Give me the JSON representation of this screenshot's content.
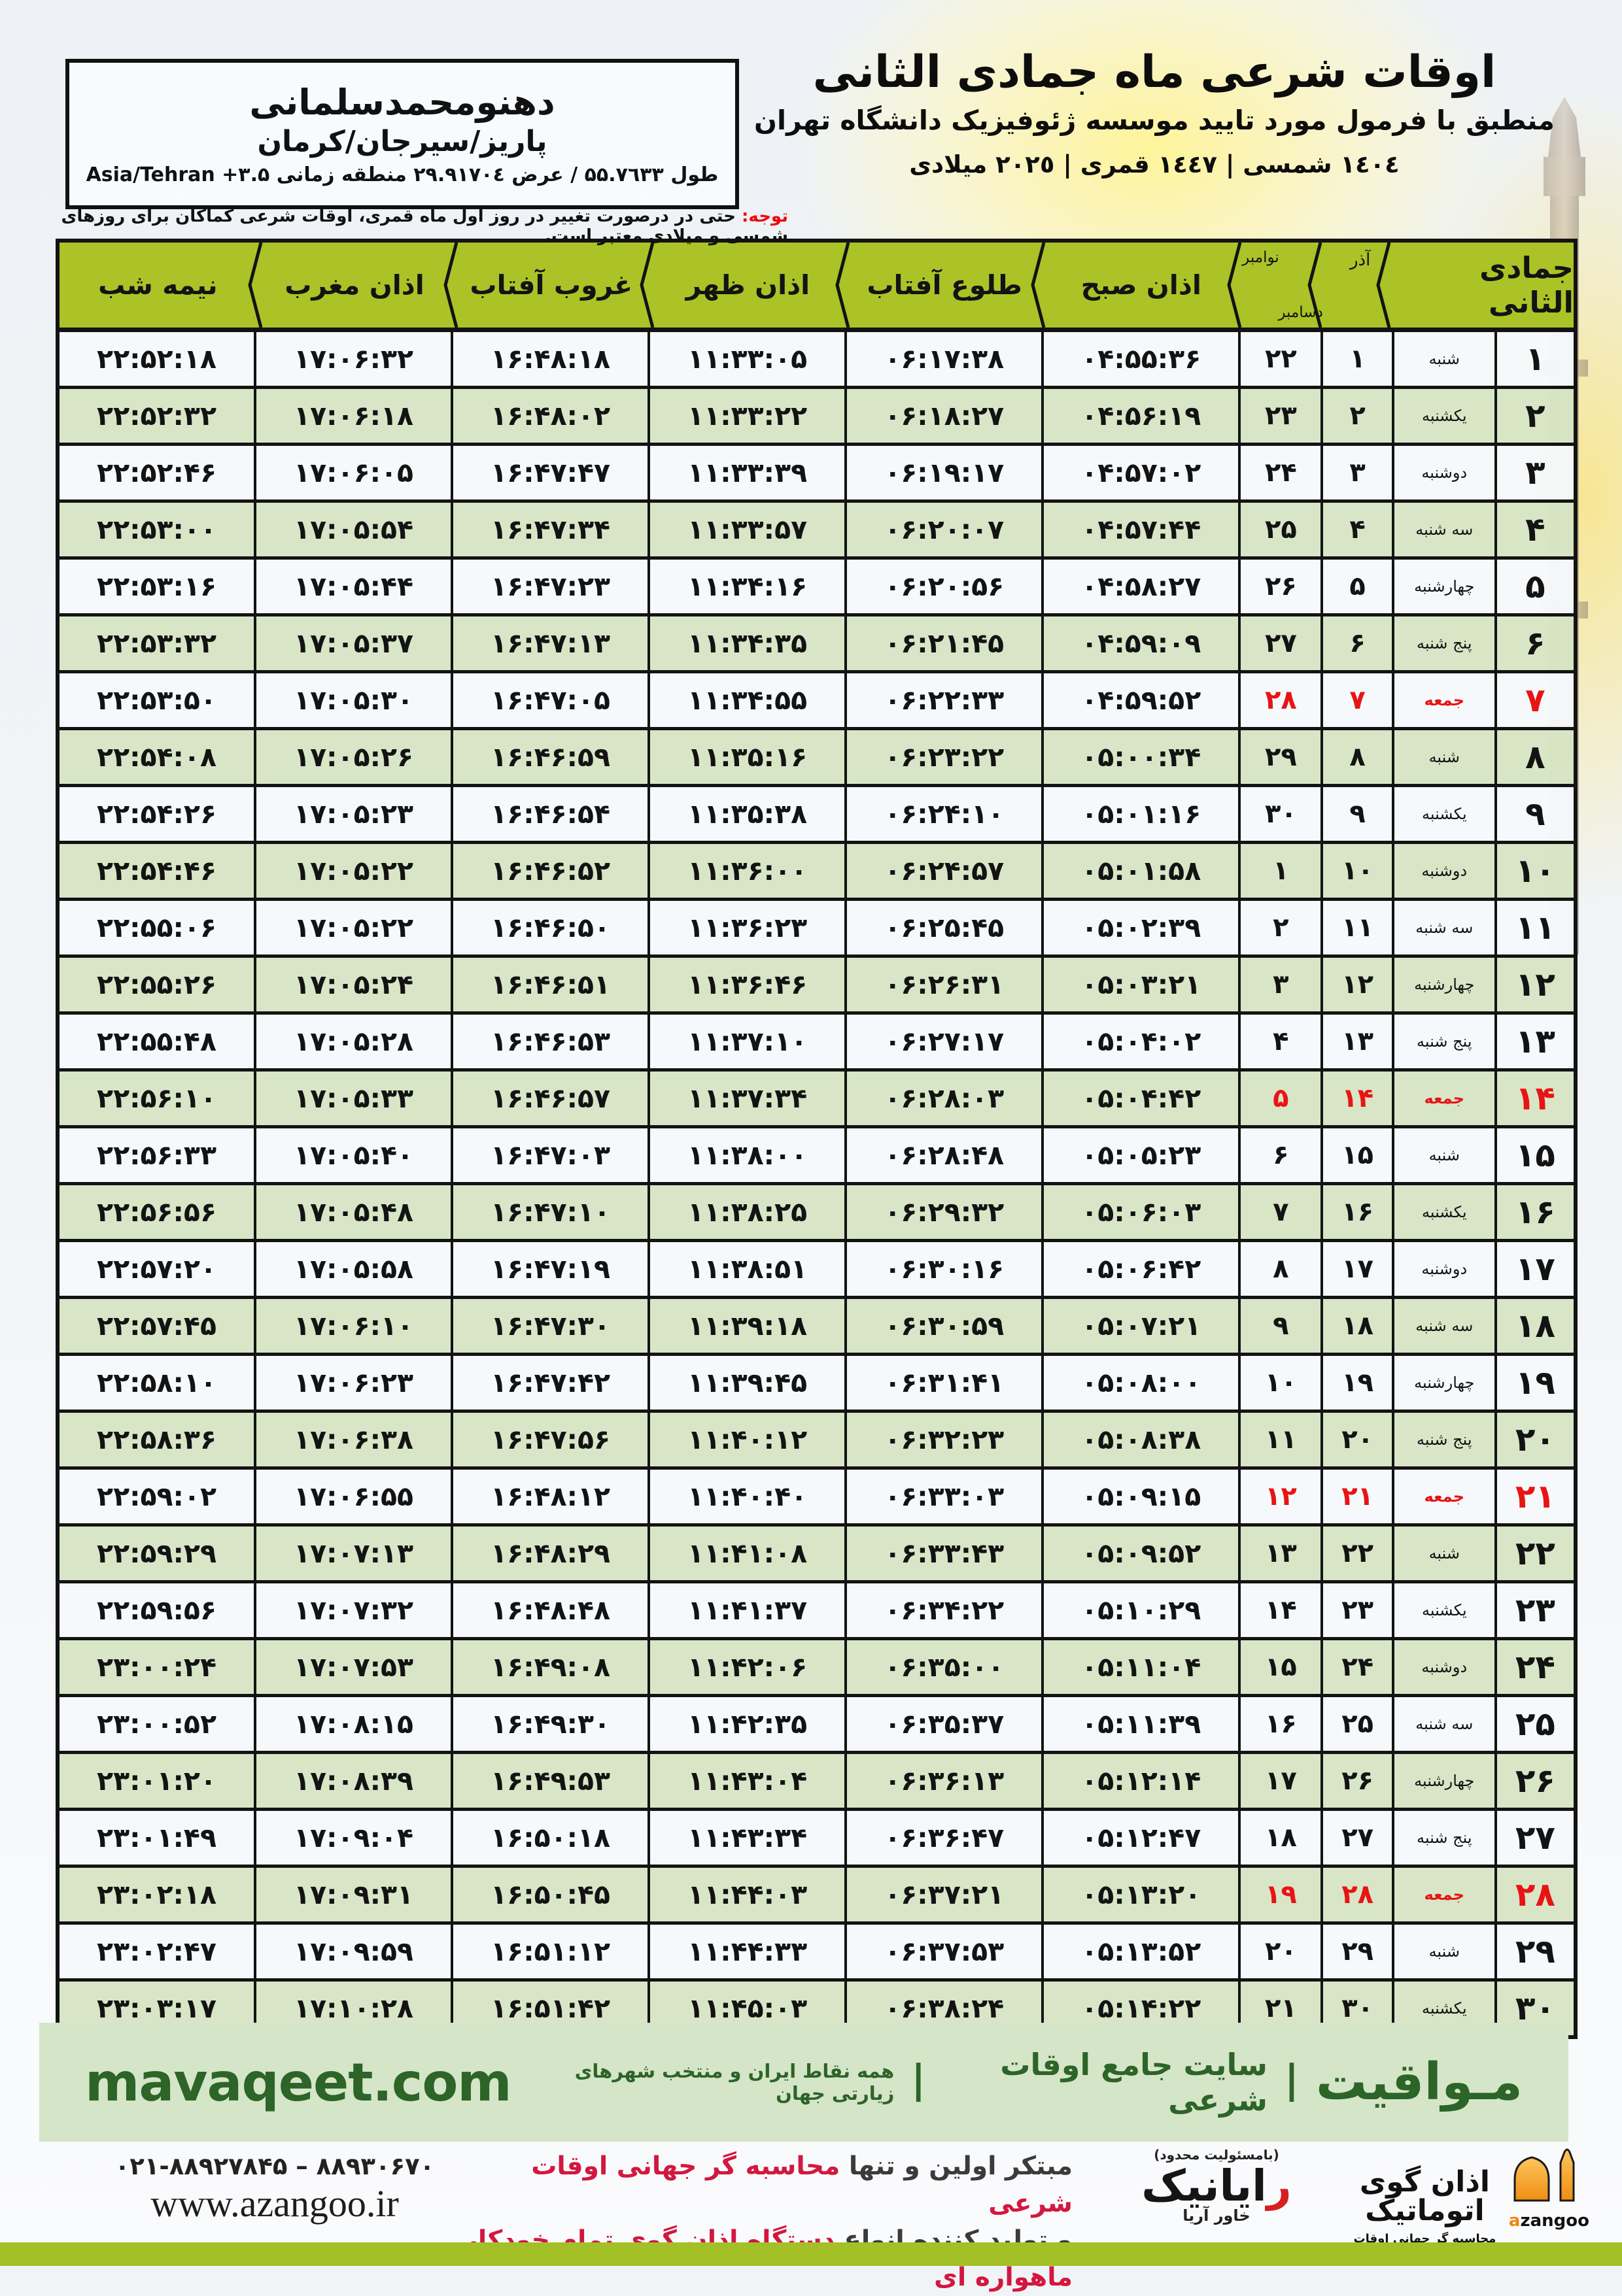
{
  "header": {
    "title": "اوقات شرعی ماه جمادی الثانی",
    "subtitle": "منطبق با فرمول مورد تایید موسسه ژئوفیزیک دانشگاه تهران",
    "date_line": "١٤٠٤ شمسی | ١٤٤٧ قمری | ٢٠٢٥ میلادی"
  },
  "location_box": {
    "name": "دهنومحمدسلمانی",
    "region": "پاریز/سیرجان/کرمان",
    "coords": "طول ۵۵.۷٦۳۳ / عرض ۲۹.۹۱۷۰٤ منطقه زمانی Asia/Tehran +۳.۵"
  },
  "note": {
    "label": "توجه:",
    "text": " حتی در درصورت تغییر در روز اول ماه قمری، اوقات شرعی کماکان برای روزهای شمسی و میلادی معتبر است."
  },
  "table": {
    "columns": {
      "month": "جمادی الثانی",
      "azar": "آذر",
      "greg_top": "نوامبر",
      "greg_bottom": "دسامبر",
      "fajr": "اذان صبح",
      "sunrise": "طلوع آفتاب",
      "dhuhr": "اذان ظهر",
      "sunset": "غروب آفتاب",
      "maghrib": "اذان مغرب",
      "midnight": "نیمه شب"
    },
    "rows": [
      {
        "day": "۱",
        "weekday": "شنبه",
        "azar": "۱",
        "greg": "۲۲",
        "fajr": "۰۴:۵۵:۳۶",
        "sunrise": "۰۶:۱۷:۳۸",
        "dhuhr": "۱۱:۳۳:۰۵",
        "sunset": "۱۶:۴۸:۱۸",
        "maghrib": "۱۷:۰۶:۳۲",
        "midnight": "۲۲:۵۲:۱۸",
        "friday": false
      },
      {
        "day": "۲",
        "weekday": "یکشنبه",
        "azar": "۲",
        "greg": "۲۳",
        "fajr": "۰۴:۵۶:۱۹",
        "sunrise": "۰۶:۱۸:۲۷",
        "dhuhr": "۱۱:۳۳:۲۲",
        "sunset": "۱۶:۴۸:۰۲",
        "maghrib": "۱۷:۰۶:۱۸",
        "midnight": "۲۲:۵۲:۳۲",
        "friday": false
      },
      {
        "day": "۳",
        "weekday": "دوشنبه",
        "azar": "۳",
        "greg": "۲۴",
        "fajr": "۰۴:۵۷:۰۲",
        "sunrise": "۰۶:۱۹:۱۷",
        "dhuhr": "۱۱:۳۳:۳۹",
        "sunset": "۱۶:۴۷:۴۷",
        "maghrib": "۱۷:۰۶:۰۵",
        "midnight": "۲۲:۵۲:۴۶",
        "friday": false
      },
      {
        "day": "۴",
        "weekday": "سه شنبه",
        "azar": "۴",
        "greg": "۲۵",
        "fajr": "۰۴:۵۷:۴۴",
        "sunrise": "۰۶:۲۰:۰۷",
        "dhuhr": "۱۱:۳۳:۵۷",
        "sunset": "۱۶:۴۷:۳۴",
        "maghrib": "۱۷:۰۵:۵۴",
        "midnight": "۲۲:۵۳:۰۰",
        "friday": false
      },
      {
        "day": "۵",
        "weekday": "چهارشنبه",
        "azar": "۵",
        "greg": "۲۶",
        "fajr": "۰۴:۵۸:۲۷",
        "sunrise": "۰۶:۲۰:۵۶",
        "dhuhr": "۱۱:۳۴:۱۶",
        "sunset": "۱۶:۴۷:۲۳",
        "maghrib": "۱۷:۰۵:۴۴",
        "midnight": "۲۲:۵۳:۱۶",
        "friday": false
      },
      {
        "day": "۶",
        "weekday": "پنج شنبه",
        "azar": "۶",
        "greg": "۲۷",
        "fajr": "۰۴:۵۹:۰۹",
        "sunrise": "۰۶:۲۱:۴۵",
        "dhuhr": "۱۱:۳۴:۳۵",
        "sunset": "۱۶:۴۷:۱۳",
        "maghrib": "۱۷:۰۵:۳۷",
        "midnight": "۲۲:۵۳:۳۲",
        "friday": false
      },
      {
        "day": "۷",
        "weekday": "جمعه",
        "azar": "۷",
        "greg": "۲۸",
        "fajr": "۰۴:۵۹:۵۲",
        "sunrise": "۰۶:۲۲:۳۳",
        "dhuhr": "۱۱:۳۴:۵۵",
        "sunset": "۱۶:۴۷:۰۵",
        "maghrib": "۱۷:۰۵:۳۰",
        "midnight": "۲۲:۵۳:۵۰",
        "friday": true
      },
      {
        "day": "۸",
        "weekday": "شنبه",
        "azar": "۸",
        "greg": "۲۹",
        "fajr": "۰۵:۰۰:۳۴",
        "sunrise": "۰۶:۲۳:۲۲",
        "dhuhr": "۱۱:۳۵:۱۶",
        "sunset": "۱۶:۴۶:۵۹",
        "maghrib": "۱۷:۰۵:۲۶",
        "midnight": "۲۲:۵۴:۰۸",
        "friday": false
      },
      {
        "day": "۹",
        "weekday": "یکشنبه",
        "azar": "۹",
        "greg": "۳۰",
        "fajr": "۰۵:۰۱:۱۶",
        "sunrise": "۰۶:۲۴:۱۰",
        "dhuhr": "۱۱:۳۵:۳۸",
        "sunset": "۱۶:۴۶:۵۴",
        "maghrib": "۱۷:۰۵:۲۳",
        "midnight": "۲۲:۵۴:۲۶",
        "friday": false
      },
      {
        "day": "۱۰",
        "weekday": "دوشنبه",
        "azar": "۱۰",
        "greg": "۱",
        "fajr": "۰۵:۰۱:۵۸",
        "sunrise": "۰۶:۲۴:۵۷",
        "dhuhr": "۱۱:۳۶:۰۰",
        "sunset": "۱۶:۴۶:۵۲",
        "maghrib": "۱۷:۰۵:۲۲",
        "midnight": "۲۲:۵۴:۴۶",
        "friday": false
      },
      {
        "day": "۱۱",
        "weekday": "سه شنبه",
        "azar": "۱۱",
        "greg": "۲",
        "fajr": "۰۵:۰۲:۳۹",
        "sunrise": "۰۶:۲۵:۴۵",
        "dhuhr": "۱۱:۳۶:۲۳",
        "sunset": "۱۶:۴۶:۵۰",
        "maghrib": "۱۷:۰۵:۲۲",
        "midnight": "۲۲:۵۵:۰۶",
        "friday": false
      },
      {
        "day": "۱۲",
        "weekday": "چهارشنبه",
        "azar": "۱۲",
        "greg": "۳",
        "fajr": "۰۵:۰۳:۲۱",
        "sunrise": "۰۶:۲۶:۳۱",
        "dhuhr": "۱۱:۳۶:۴۶",
        "sunset": "۱۶:۴۶:۵۱",
        "maghrib": "۱۷:۰۵:۲۴",
        "midnight": "۲۲:۵۵:۲۶",
        "friday": false
      },
      {
        "day": "۱۳",
        "weekday": "پنج شنبه",
        "azar": "۱۳",
        "greg": "۴",
        "fajr": "۰۵:۰۴:۰۲",
        "sunrise": "۰۶:۲۷:۱۷",
        "dhuhr": "۱۱:۳۷:۱۰",
        "sunset": "۱۶:۴۶:۵۳",
        "maghrib": "۱۷:۰۵:۲۸",
        "midnight": "۲۲:۵۵:۴۸",
        "friday": false
      },
      {
        "day": "۱۴",
        "weekday": "جمعه",
        "azar": "۱۴",
        "greg": "۵",
        "fajr": "۰۵:۰۴:۴۲",
        "sunrise": "۰۶:۲۸:۰۳",
        "dhuhr": "۱۱:۳۷:۳۴",
        "sunset": "۱۶:۴۶:۵۷",
        "maghrib": "۱۷:۰۵:۳۳",
        "midnight": "۲۲:۵۶:۱۰",
        "friday": true
      },
      {
        "day": "۱۵",
        "weekday": "شنبه",
        "azar": "۱۵",
        "greg": "۶",
        "fajr": "۰۵:۰۵:۲۳",
        "sunrise": "۰۶:۲۸:۴۸",
        "dhuhr": "۱۱:۳۸:۰۰",
        "sunset": "۱۶:۴۷:۰۳",
        "maghrib": "۱۷:۰۵:۴۰",
        "midnight": "۲۲:۵۶:۳۳",
        "friday": false
      },
      {
        "day": "۱۶",
        "weekday": "یکشنبه",
        "azar": "۱۶",
        "greg": "۷",
        "fajr": "۰۵:۰۶:۰۳",
        "sunrise": "۰۶:۲۹:۳۲",
        "dhuhr": "۱۱:۳۸:۲۵",
        "sunset": "۱۶:۴۷:۱۰",
        "maghrib": "۱۷:۰۵:۴۸",
        "midnight": "۲۲:۵۶:۵۶",
        "friday": false
      },
      {
        "day": "۱۷",
        "weekday": "دوشنبه",
        "azar": "۱۷",
        "greg": "۸",
        "fajr": "۰۵:۰۶:۴۲",
        "sunrise": "۰۶:۳۰:۱۶",
        "dhuhr": "۱۱:۳۸:۵۱",
        "sunset": "۱۶:۴۷:۱۹",
        "maghrib": "۱۷:۰۵:۵۸",
        "midnight": "۲۲:۵۷:۲۰",
        "friday": false
      },
      {
        "day": "۱۸",
        "weekday": "سه شنبه",
        "azar": "۱۸",
        "greg": "۹",
        "fajr": "۰۵:۰۷:۲۱",
        "sunrise": "۰۶:۳۰:۵۹",
        "dhuhr": "۱۱:۳۹:۱۸",
        "sunset": "۱۶:۴۷:۳۰",
        "maghrib": "۱۷:۰۶:۱۰",
        "midnight": "۲۲:۵۷:۴۵",
        "friday": false
      },
      {
        "day": "۱۹",
        "weekday": "چهارشنبه",
        "azar": "۱۹",
        "greg": "۱۰",
        "fajr": "۰۵:۰۸:۰۰",
        "sunrise": "۰۶:۳۱:۴۱",
        "dhuhr": "۱۱:۳۹:۴۵",
        "sunset": "۱۶:۴۷:۴۲",
        "maghrib": "۱۷:۰۶:۲۳",
        "midnight": "۲۲:۵۸:۱۰",
        "friday": false
      },
      {
        "day": "۲۰",
        "weekday": "پنج شنبه",
        "azar": "۲۰",
        "greg": "۱۱",
        "fajr": "۰۵:۰۸:۳۸",
        "sunrise": "۰۶:۳۲:۲۳",
        "dhuhr": "۱۱:۴۰:۱۲",
        "sunset": "۱۶:۴۷:۵۶",
        "maghrib": "۱۷:۰۶:۳۸",
        "midnight": "۲۲:۵۸:۳۶",
        "friday": false
      },
      {
        "day": "۲۱",
        "weekday": "جمعه",
        "azar": "۲۱",
        "greg": "۱۲",
        "fajr": "۰۵:۰۹:۱۵",
        "sunrise": "۰۶:۳۳:۰۳",
        "dhuhr": "۱۱:۴۰:۴۰",
        "sunset": "۱۶:۴۸:۱۲",
        "maghrib": "۱۷:۰۶:۵۵",
        "midnight": "۲۲:۵۹:۰۲",
        "friday": true
      },
      {
        "day": "۲۲",
        "weekday": "شنبه",
        "azar": "۲۲",
        "greg": "۱۳",
        "fajr": "۰۵:۰۹:۵۲",
        "sunrise": "۰۶:۳۳:۴۳",
        "dhuhr": "۱۱:۴۱:۰۸",
        "sunset": "۱۶:۴۸:۲۹",
        "maghrib": "۱۷:۰۷:۱۳",
        "midnight": "۲۲:۵۹:۲۹",
        "friday": false
      },
      {
        "day": "۲۳",
        "weekday": "یکشنبه",
        "azar": "۲۳",
        "greg": "۱۴",
        "fajr": "۰۵:۱۰:۲۹",
        "sunrise": "۰۶:۳۴:۲۲",
        "dhuhr": "۱۱:۴۱:۳۷",
        "sunset": "۱۶:۴۸:۴۸",
        "maghrib": "۱۷:۰۷:۳۲",
        "midnight": "۲۲:۵۹:۵۶",
        "friday": false
      },
      {
        "day": "۲۴",
        "weekday": "دوشنبه",
        "azar": "۲۴",
        "greg": "۱۵",
        "fajr": "۰۵:۱۱:۰۴",
        "sunrise": "۰۶:۳۵:۰۰",
        "dhuhr": "۱۱:۴۲:۰۶",
        "sunset": "۱۶:۴۹:۰۸",
        "maghrib": "۱۷:۰۷:۵۳",
        "midnight": "۲۳:۰۰:۲۴",
        "friday": false
      },
      {
        "day": "۲۵",
        "weekday": "سه شنبه",
        "azar": "۲۵",
        "greg": "۱۶",
        "fajr": "۰۵:۱۱:۳۹",
        "sunrise": "۰۶:۳۵:۳۷",
        "dhuhr": "۱۱:۴۲:۳۵",
        "sunset": "۱۶:۴۹:۳۰",
        "maghrib": "۱۷:۰۸:۱۵",
        "midnight": "۲۳:۰۰:۵۲",
        "friday": false
      },
      {
        "day": "۲۶",
        "weekday": "چهارشنبه",
        "azar": "۲۶",
        "greg": "۱۷",
        "fajr": "۰۵:۱۲:۱۴",
        "sunrise": "۰۶:۳۶:۱۳",
        "dhuhr": "۱۱:۴۳:۰۴",
        "sunset": "۱۶:۴۹:۵۳",
        "maghrib": "۱۷:۰۸:۳۹",
        "midnight": "۲۳:۰۱:۲۰",
        "friday": false
      },
      {
        "day": "۲۷",
        "weekday": "پنج شنبه",
        "azar": "۲۷",
        "greg": "۱۸",
        "fajr": "۰۵:۱۲:۴۷",
        "sunrise": "۰۶:۳۶:۴۷",
        "dhuhr": "۱۱:۴۳:۳۴",
        "sunset": "۱۶:۵۰:۱۸",
        "maghrib": "۱۷:۰۹:۰۴",
        "midnight": "۲۳:۰۱:۴۹",
        "friday": false
      },
      {
        "day": "۲۸",
        "weekday": "جمعه",
        "azar": "۲۸",
        "greg": "۱۹",
        "fajr": "۰۵:۱۳:۲۰",
        "sunrise": "۰۶:۳۷:۲۱",
        "dhuhr": "۱۱:۴۴:۰۳",
        "sunset": "۱۶:۵۰:۴۵",
        "maghrib": "۱۷:۰۹:۳۱",
        "midnight": "۲۳:۰۲:۱۸",
        "friday": true
      },
      {
        "day": "۲۹",
        "weekday": "شنبه",
        "azar": "۲۹",
        "greg": "۲۰",
        "fajr": "۰۵:۱۳:۵۲",
        "sunrise": "۰۶:۳۷:۵۳",
        "dhuhr": "۱۱:۴۴:۳۳",
        "sunset": "۱۶:۵۱:۱۲",
        "maghrib": "۱۷:۰۹:۵۹",
        "midnight": "۲۳:۰۲:۴۷",
        "friday": false
      },
      {
        "day": "۳۰",
        "weekday": "یکشنبه",
        "azar": "۳۰",
        "greg": "۲۱",
        "fajr": "۰۵:۱۴:۲۲",
        "sunrise": "۰۶:۳۸:۲۴",
        "dhuhr": "۱۱:۴۵:۰۳",
        "sunset": "۱۶:۵۱:۴۲",
        "maghrib": "۱۷:۱۰:۲۸",
        "midnight": "۲۳:۰۳:۱۷",
        "friday": false
      }
    ]
  },
  "footer_bar": {
    "brand": "مـواقیت",
    "divider": "|",
    "site_desc": "سایت جامع اوقات شرعی",
    "coverage": "همه نقاط ایران و منتخب شهرهای زیارتی جهان",
    "url": "mavaqeet.com"
  },
  "bottom": {
    "phone": "۰۲۱-۸۸۹۲۷۸۴۵ – ۸۸۹۳۰۶۷۰",
    "website": "www.azangoo.ir",
    "tagline_line1_black": "مبتکر اولین و تنها ",
    "tagline_line1_red": "محاسبه گر جهانی اوقات شرعی",
    "tagline_line2_black": "و تولید کننده انواع ",
    "tagline_line2_red": "دستگاه اذان گوی تمام خودکار ماهواره ای",
    "rayanik_note": "(بامسئولیت محدود)",
    "rayanik_initial": "ر",
    "rayanik_rest": "ایانیک",
    "rayanik_sub": "خاور آریا",
    "azangoo_wordmark": "اذان گوی اتوماتیک",
    "azangoo_tagline": "محاسبه گر جهانی اوقات شرعی",
    "azangoo_latin_a": "a",
    "azangoo_latin_rest": "zangoo"
  },
  "colors": {
    "header_green": "#abc326",
    "row_green": "#d6e5c4",
    "row_white": "#f5f9fc",
    "friday_red": "#e81414",
    "footer_bg": "#d5e5c8",
    "footer_text": "#2d6428",
    "bottom_bar": "#a3c027",
    "tagline_red": "#d2183f",
    "note_red": "#ec0b0b"
  }
}
